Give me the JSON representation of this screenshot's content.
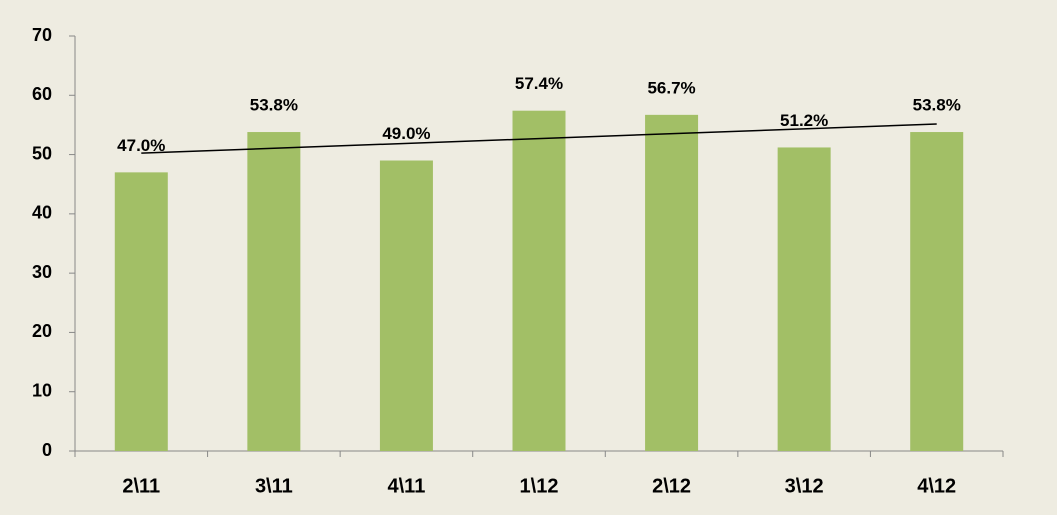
{
  "chart_data": {
    "type": "bar",
    "categories": [
      "2\\11",
      "3\\11",
      "4\\11",
      "1\\12",
      "2\\12",
      "3\\12",
      "4\\12"
    ],
    "values": [
      47.0,
      53.8,
      49.0,
      57.4,
      56.7,
      51.2,
      53.8
    ],
    "value_labels": [
      "47.0%",
      "53.8%",
      "49.0%",
      "57.4%",
      "56.7%",
      "51.2%",
      "53.8%"
    ],
    "color": "#a2bf66",
    "ylim": [
      0,
      70
    ],
    "yticks": [
      0,
      10,
      20,
      30,
      40,
      50,
      60,
      70
    ],
    "grid": false,
    "trendline": "linear"
  }
}
